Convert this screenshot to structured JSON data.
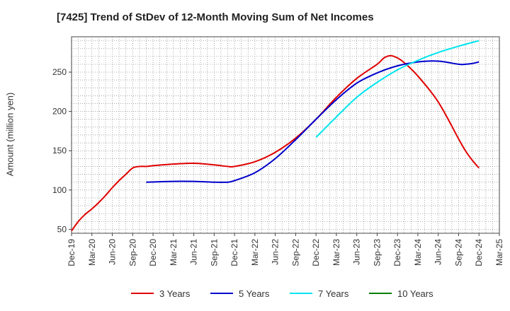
{
  "chart_data": {
    "type": "line",
    "title": "[7425]  Trend of StDev of 12-Month Moving Sum of Net Incomes",
    "xlabel": "",
    "ylabel": "Amount (million yen)",
    "x_ticks": [
      "Dec-19",
      "Mar-20",
      "Jun-20",
      "Sep-20",
      "Dec-20",
      "Mar-21",
      "Jun-21",
      "Sep-21",
      "Dec-21",
      "Mar-22",
      "Jun-22",
      "Sep-22",
      "Dec-22",
      "Mar-23",
      "Jun-23",
      "Sep-23",
      "Dec-23",
      "Mar-24",
      "Jun-24",
      "Sep-24",
      "Dec-24",
      "Mar-25"
    ],
    "ylim": [
      45,
      295
    ],
    "y_ticks": [
      50,
      100,
      150,
      200,
      250
    ],
    "grid": true,
    "legend_position": "bottom",
    "series": [
      {
        "name": "3 Years",
        "color": "#e00000",
        "x": [
          "2019-12",
          "2020-01",
          "2020-02",
          "2020-03",
          "2020-04",
          "2020-05",
          "2020-06",
          "2020-07",
          "2020-08",
          "2020-09",
          "2020-10",
          "2020-11",
          "2020-12",
          "2021-03",
          "2021-06",
          "2021-09",
          "2021-11",
          "2021-12",
          "2022-03",
          "2022-06",
          "2022-09",
          "2022-12",
          "2023-03",
          "2023-06",
          "2023-09",
          "2023-10",
          "2023-11",
          "2023-12",
          "2024-01",
          "2024-03",
          "2024-06",
          "2024-09",
          "2024-10",
          "2024-11",
          "2024-12"
        ],
        "values": [
          48,
          60,
          69,
          76,
          84,
          93,
          103,
          112,
          120,
          128,
          130,
          130,
          131,
          133,
          134,
          132,
          130,
          130,
          136,
          148,
          166,
          190,
          218,
          242,
          260,
          268,
          271,
          268,
          262,
          245,
          212,
          165,
          150,
          138,
          128
        ]
      },
      {
        "name": "5 Years",
        "color": "#0000cc",
        "x": [
          "2020-11",
          "2021-03",
          "2021-06",
          "2021-09",
          "2021-11",
          "2021-12",
          "2022-03",
          "2022-06",
          "2022-09",
          "2022-12",
          "2023-03",
          "2023-06",
          "2023-09",
          "2023-12",
          "2024-03",
          "2024-06",
          "2024-09",
          "2024-10",
          "2024-11",
          "2024-12"
        ],
        "values": [
          110,
          111,
          111,
          110,
          110,
          112,
          122,
          140,
          164,
          190,
          215,
          236,
          249,
          258,
          263,
          264,
          260,
          260,
          261,
          263
        ]
      },
      {
        "name": "7 Years",
        "color": "#00e5ee",
        "x": [
          "2022-12",
          "2023-03",
          "2023-06",
          "2023-09",
          "2023-12",
          "2024-03",
          "2024-06",
          "2024-09",
          "2024-12"
        ],
        "values": [
          167,
          193,
          218,
          237,
          253,
          265,
          275,
          283,
          290
        ]
      },
      {
        "name": "10 Years",
        "color": "#008000",
        "x": [],
        "values": []
      }
    ]
  }
}
